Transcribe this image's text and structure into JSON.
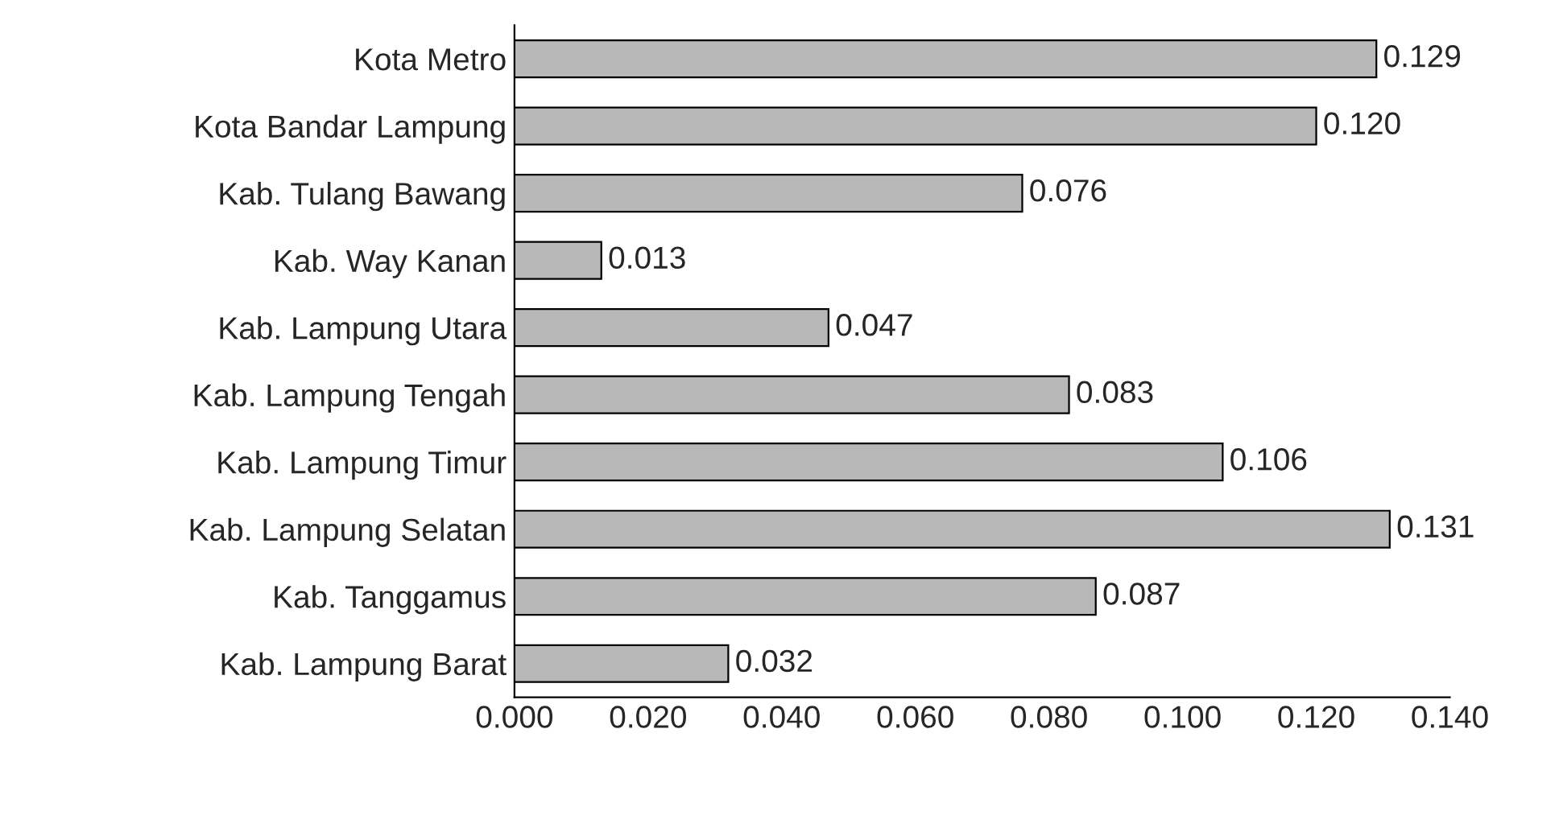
{
  "chart_data": {
    "type": "bar",
    "orientation": "horizontal",
    "categories": [
      "Kota Metro",
      "Kota Bandar Lampung",
      "Kab. Tulang Bawang",
      "Kab. Way Kanan",
      "Kab. Lampung Utara",
      "Kab. Lampung Tengah",
      "Kab. Lampung Timur",
      "Kab. Lampung Selatan",
      "Kab. Tanggamus",
      "Kab. Lampung Barat"
    ],
    "values": [
      0.129,
      0.12,
      0.076,
      0.013,
      0.047,
      0.083,
      0.106,
      0.131,
      0.087,
      0.032
    ],
    "value_labels": [
      "0.129",
      "0.120",
      "0.076",
      "0.013",
      "0.047",
      "0.083",
      "0.106",
      "0.131",
      "0.087",
      "0.032"
    ],
    "color": "#b8b8b8",
    "xlim": [
      0,
      0.14
    ],
    "xticks": [
      {
        "value": 0,
        "label": "0.000"
      },
      {
        "value": 0.02,
        "label": "0.020"
      },
      {
        "value": 0.04,
        "label": "0.040"
      },
      {
        "value": 0.06,
        "label": "0.060"
      },
      {
        "value": 0.08,
        "label": "0.080"
      },
      {
        "value": 0.1,
        "label": "0.100"
      },
      {
        "value": 0.12,
        "label": "0.120"
      },
      {
        "value": 0.14,
        "label": "0.140"
      }
    ],
    "grid": false,
    "legend": false
  }
}
